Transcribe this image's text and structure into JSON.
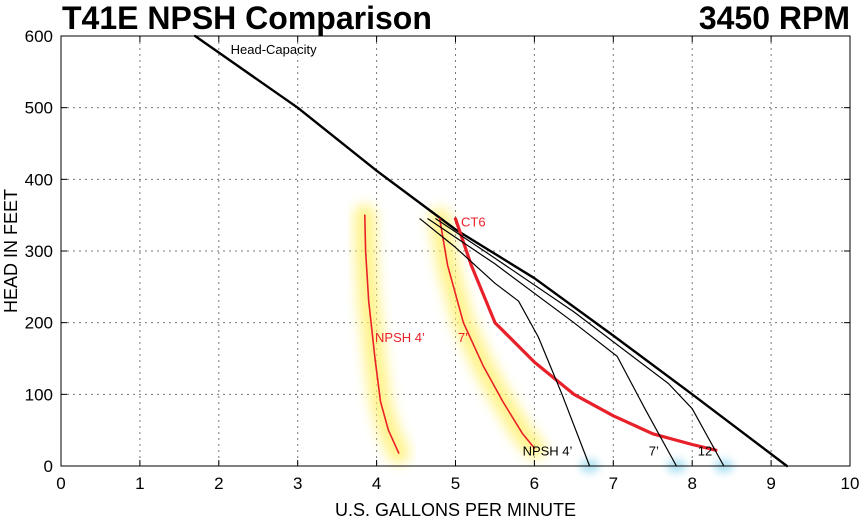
{
  "chart_data": {
    "type": "line",
    "title": "T41E NPSH Comparison",
    "subtitle": "3450 RPM",
    "xlabel": "U.S. GALLONS PER MINUTE",
    "ylabel": "HEAD IN FEET",
    "xlim": [
      0,
      10
    ],
    "ylim": [
      0,
      600
    ],
    "xticks": [
      0,
      1,
      2,
      3,
      4,
      5,
      6,
      7,
      8,
      9,
      10
    ],
    "yticks": [
      0,
      100,
      200,
      300,
      400,
      500,
      600
    ],
    "grid": true,
    "colors": {
      "head": "#000000",
      "ct6": "#e8202a",
      "npsh_red": "#e8202a",
      "npsh_black": "#000000",
      "glow_yellow": "#fff06a",
      "glow_blue": "#9fdcf0"
    },
    "series": [
      {
        "id": "head-capacity",
        "name": "Head-Capacity",
        "color": "#000000",
        "x": [
          1.7,
          3.0,
          4.0,
          5.0,
          6.0,
          7.0,
          8.0,
          9.2
        ],
        "y": [
          600,
          500,
          412,
          330,
          262,
          182,
          100,
          0
        ]
      },
      {
        "id": "ct6",
        "name": "CT6",
        "color": "#e8202a",
        "x": [
          5.0,
          5.2,
          5.5,
          6.0,
          6.5,
          7.0,
          7.5,
          8.0,
          8.3
        ],
        "y": [
          345,
          280,
          200,
          145,
          100,
          70,
          45,
          30,
          22
        ]
      },
      {
        "id": "npsh4-red",
        "name": "NPSH 4’",
        "color": "#e8202a",
        "x": [
          3.85,
          3.86,
          3.9,
          3.98,
          4.05,
          4.15,
          4.28
        ],
        "y": [
          350,
          300,
          230,
          150,
          90,
          50,
          18
        ]
      },
      {
        "id": "npsh7-red",
        "name": "7’",
        "color": "#e8202a",
        "x": [
          4.8,
          4.9,
          5.1,
          5.35,
          5.6,
          5.85,
          6.0
        ],
        "y": [
          345,
          280,
          200,
          140,
          90,
          45,
          25
        ]
      },
      {
        "id": "npsh4-black",
        "name": "NPSH 4’",
        "color": "#000000",
        "x": [
          4.55,
          5.0,
          5.5,
          5.8,
          6.05,
          6.35,
          6.7
        ],
        "y": [
          345,
          305,
          255,
          230,
          180,
          100,
          0
        ]
      },
      {
        "id": "npsh7-black",
        "name": "7’",
        "color": "#000000",
        "x": [
          4.65,
          5.5,
          6.5,
          7.05,
          7.4,
          7.8
        ],
        "y": [
          345,
          282,
          200,
          153,
          80,
          0
        ]
      },
      {
        "id": "npsh12-black",
        "name": "12’",
        "color": "#000000",
        "x": [
          4.75,
          5.5,
          6.5,
          7.7,
          8.0,
          8.4
        ],
        "y": [
          345,
          290,
          215,
          115,
          80,
          0
        ]
      }
    ],
    "annotations": [
      {
        "id": "ann-head-capacity",
        "text": "Head-Capacity",
        "x": 2.15,
        "y": 575,
        "color": "#000000"
      },
      {
        "id": "ann-ct6",
        "text": "CT6",
        "x": 5.07,
        "y": 334,
        "color": "#e8202a"
      },
      {
        "id": "ann-npsh4-red",
        "text": "NPSH 4’",
        "x": 3.98,
        "y": 173,
        "color": "#e8202a"
      },
      {
        "id": "ann-npsh7-red",
        "text": "7’",
        "x": 5.03,
        "y": 173,
        "color": "#e8202a"
      },
      {
        "id": "ann-npsh4-black",
        "text": "NPSH 4’",
        "x": 5.85,
        "y": 15,
        "color": "#000000"
      },
      {
        "id": "ann-npsh7-black",
        "text": "7’",
        "x": 7.45,
        "y": 15,
        "color": "#000000"
      },
      {
        "id": "ann-npsh12-black",
        "text": "12’",
        "x": 8.07,
        "y": 15,
        "color": "#000000"
      }
    ]
  }
}
